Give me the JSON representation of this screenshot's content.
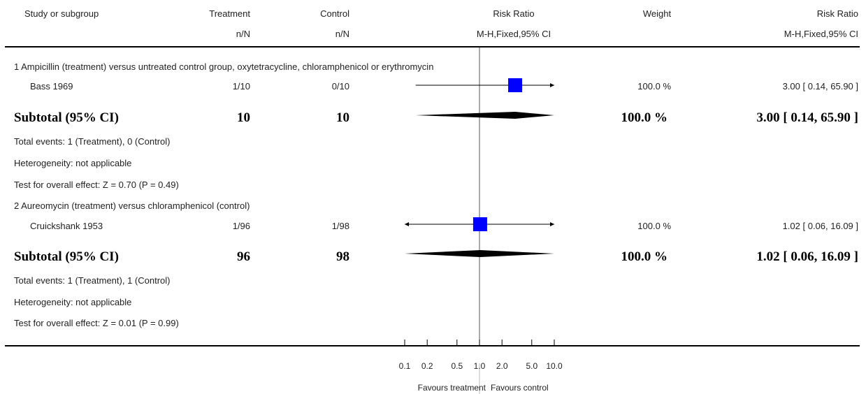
{
  "header": {
    "study_label": "Study or subgroup",
    "treatment_label": "Treatment",
    "treatment_sub": "n/N",
    "control_label": "Control",
    "control_sub": "n/N",
    "rr_label": "Risk Ratio",
    "rr_sub": "M-H,Fixed,95% CI",
    "weight_label": "Weight",
    "rr2_label": "Risk Ratio",
    "rr2_sub": "M-H,Fixed,95% CI"
  },
  "groups": [
    {
      "title": "1 Ampicillin (treatment) versus untreated control group, oxytetracycline, chloramphenicol or erythromycin",
      "study": {
        "name": "Bass 1969",
        "treatment": "1/10",
        "control": "0/10",
        "weight": "100.0 %",
        "ci_text": "3.00 [ 0.14, 65.90 ]"
      },
      "subtotal": {
        "label": "Subtotal (95% CI)",
        "treatment": "10",
        "control": "10",
        "weight": "100.0 %",
        "ci_text": "3.00 [ 0.14, 65.90 ]"
      },
      "total_events": "Total events: 1 (Treatment), 0 (Control)",
      "heterogeneity": "Heterogeneity: not applicable",
      "overall_effect": "Test for overall effect: Z = 0.70 (P = 0.49)"
    },
    {
      "title": "2 Aureomycin (treatment) versus chloramphenicol (control)",
      "study": {
        "name": "Cruickshank 1953",
        "treatment": "1/96",
        "control": "1/98",
        "weight": "100.0 %",
        "ci_text": "1.02 [ 0.06, 16.09 ]"
      },
      "subtotal": {
        "label": "Subtotal (95% CI)",
        "treatment": "96",
        "control": "98",
        "weight": "100.0 %",
        "ci_text": "1.02 [ 0.06, 16.09 ]"
      },
      "total_events": "Total events: 1 (Treatment), 1 (Control)",
      "heterogeneity": "Heterogeneity: not applicable",
      "overall_effect": "Test for overall effect: Z = 0.01 (P = 0.99)"
    }
  ],
  "axis": {
    "ticks": [
      {
        "value": 0.1,
        "label": "0.1"
      },
      {
        "value": 0.2,
        "label": "0.2"
      },
      {
        "value": 0.5,
        "label": "0.5"
      },
      {
        "value": 1.0,
        "label": "1.0"
      },
      {
        "value": 2.0,
        "label": "2.0"
      },
      {
        "value": 5.0,
        "label": "5.0"
      },
      {
        "value": 10.0,
        "label": "10.0"
      }
    ],
    "favours_left": "Favours treatment",
    "favours_right": "Favours control"
  },
  "chart_data": {
    "type": "forest",
    "scale": "log",
    "xlim": [
      0.1,
      10.0
    ],
    "reference_line": 1.0,
    "studies": [
      {
        "name": "Bass 1969",
        "rr": 3.0,
        "ci_low": 0.14,
        "ci_high": 65.9,
        "weight": 100.0
      },
      {
        "name": "Cruickshank 1953",
        "rr": 1.02,
        "ci_low": 0.06,
        "ci_high": 16.09,
        "weight": 100.0
      }
    ],
    "subtotals": [
      {
        "name": "Subtotal (95% CI)",
        "rr": 3.0,
        "ci_low": 0.14,
        "ci_high": 65.9
      },
      {
        "name": "Subtotal (95% CI)",
        "rr": 1.02,
        "ci_low": 0.06,
        "ci_high": 16.09
      }
    ],
    "colors": {
      "box": "#0000ff",
      "diamond": "#000000",
      "line": "#000000"
    }
  }
}
